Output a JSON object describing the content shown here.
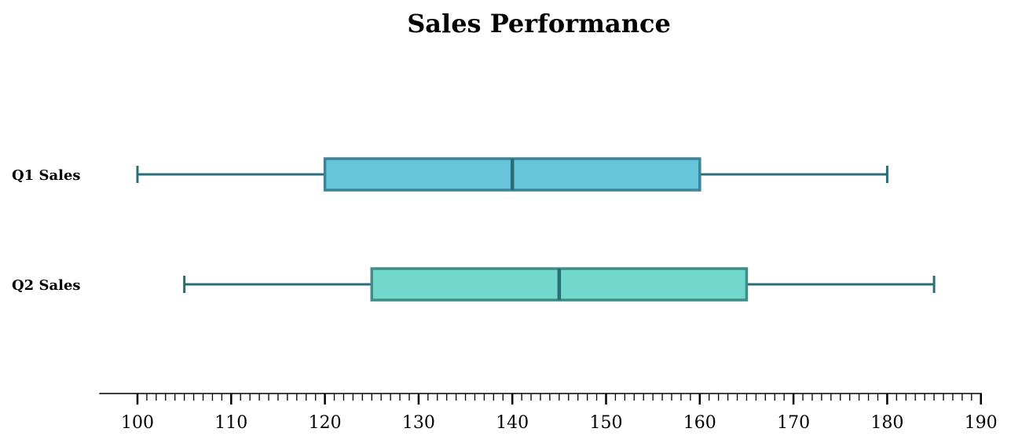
{
  "chart_data": {
    "type": "boxplot",
    "orientation": "horizontal",
    "title": "Sales Performance",
    "xlabel": "",
    "ylabel": "",
    "xlim": [
      96,
      190
    ],
    "grid": false,
    "major_ticks": [
      100,
      110,
      120,
      130,
      140,
      150,
      160,
      170,
      180,
      190
    ],
    "tick_labels": [
      "100",
      "110",
      "120",
      "130",
      "140",
      "150",
      "160",
      "170",
      "180",
      "190"
    ],
    "minor_tick_step": 1,
    "series": [
      {
        "name": "Q1 Sales",
        "min": 100,
        "q1": 120,
        "median": 140,
        "q3": 160,
        "max": 180,
        "box_color": "#67c5db",
        "edge_color": "#3d8496",
        "whisker_color": "#2b6d75"
      },
      {
        "name": "Q2 Sales",
        "min": 105,
        "q1": 125,
        "median": 145,
        "q3": 165,
        "max": 185,
        "box_color": "#72d8cd",
        "edge_color": "#3e8d86",
        "whisker_color": "#2b6d75"
      }
    ]
  }
}
